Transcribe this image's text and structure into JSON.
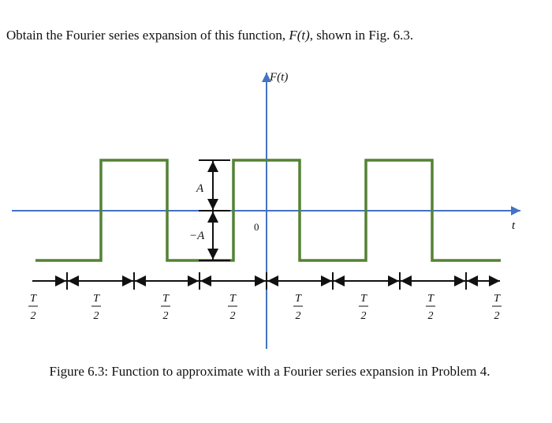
{
  "question": {
    "before": "Obtain the Fourier series expansion of this function, ",
    "math": "F(t)",
    "after": ", shown in Fig. 6.3."
  },
  "figure": {
    "y_axis_label": "F(t)",
    "x_axis_label": "t",
    "origin_label": "0",
    "amplitude_label": "A",
    "negative_amplitude_label": "−A",
    "interval_labels": [
      {
        "numerator": "T",
        "denominator": "2"
      },
      {
        "numerator": "T",
        "denominator": "2"
      },
      {
        "numerator": "T",
        "denominator": "2"
      },
      {
        "numerator": "T",
        "denominator": "2"
      },
      {
        "numerator": "T",
        "denominator": "2"
      },
      {
        "numerator": "T",
        "denominator": "2"
      },
      {
        "numerator": "T",
        "denominator": "2"
      },
      {
        "numerator": "T",
        "denominator": "2"
      }
    ]
  },
  "caption": "Figure 6.3: Function to approximate with a Fourier series expansion in Problem 4."
}
